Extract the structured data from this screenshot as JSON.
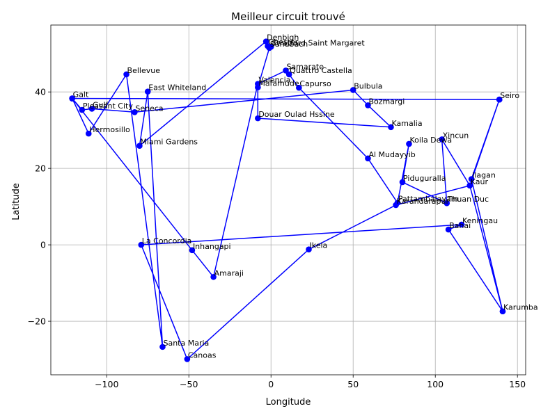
{
  "chart_data": {
    "type": "line",
    "title": "Meilleur circuit trouvé",
    "xlabel": "Longitude",
    "ylabel": "Latitude",
    "xlim": [
      -134,
      155
    ],
    "ylim": [
      -34,
      57.5
    ],
    "xticks": [
      -100,
      -50,
      0,
      50,
      100,
      150
    ],
    "yticks": [
      -20,
      0,
      20,
      40
    ],
    "grid": true,
    "color": "#0000ff",
    "series": [
      {
        "points": [
          {
            "name": "Galt",
            "x": -121,
            "y": 38.3
          },
          {
            "name": "Seiro",
            "x": 139,
            "y": 38
          },
          {
            "name": "Ilagan",
            "x": 122,
            "y": 17.2
          },
          {
            "name": "Karumba",
            "x": 141,
            "y": -17.4
          },
          {
            "name": "Kaur",
            "x": 121,
            "y": 15.5
          },
          {
            "name": "Xincun",
            "x": 104,
            "y": 27.6
          },
          {
            "name": "Thuan Duc",
            "x": 107,
            "y": 10.9
          },
          {
            "name": "Piduguralla",
            "x": 80,
            "y": 16.4
          },
          {
            "name": "Koila Dewa",
            "x": 84,
            "y": 26.4
          },
          {
            "name": "Pattambalayam",
            "x": 77,
            "y": 11
          },
          {
            "name": "Al Mudayyib",
            "x": 59,
            "y": 22.6
          },
          {
            "name": "Capurso",
            "x": 17,
            "y": 41.1
          },
          {
            "name": "Quattro Castella",
            "x": 11,
            "y": 44.6
          },
          {
            "name": "Samarate",
            "x": 9,
            "y": 45.6
          },
          {
            "name": "Valencia",
            "x": -8,
            "y": 42.1
          },
          {
            "name": "Amaraji",
            "x": -35,
            "y": -8.4
          },
          {
            "name": "Inhangapi",
            "x": -48,
            "y": -1.4
          },
          {
            "name": "Galt",
            "x": -121,
            "y": 38.3
          },
          {
            "name": "Hermosillo",
            "x": -111,
            "y": 29.1
          },
          {
            "name": "Bellevue",
            "x": -88,
            "y": 44.6
          },
          {
            "name": "Santa Maria",
            "x": -66,
            "y": -26.7
          },
          {
            "name": "East Whiteland",
            "x": -75,
            "y": 40.1
          },
          {
            "name": "Miami Gardens",
            "x": -80,
            "y": 25.9
          },
          {
            "name": "Denbigh",
            "x": -3,
            "y": 53.2
          },
          {
            "name": "Chester",
            "x": -2,
            "y": 52
          },
          {
            "name": "Stratford Saint Margaret",
            "x": 0,
            "y": 51.8
          },
          {
            "name": "Sandbach",
            "x": -1,
            "y": 51.5
          },
          {
            "name": "Mafamude",
            "x": -8,
            "y": 41.2
          },
          {
            "name": "Douar Oulad Hssine",
            "x": -8,
            "y": 33.1
          },
          {
            "name": "Kamalia",
            "x": 73,
            "y": 30.8
          },
          {
            "name": "Bozmargi",
            "x": 59,
            "y": 36.5
          },
          {
            "name": "Bulbula",
            "x": 50,
            "y": 40.5
          },
          {
            "name": "Seneca",
            "x": -83,
            "y": 34.7
          },
          {
            "name": "Gulf",
            "x": -109,
            "y": 35.6
          },
          {
            "name": "Pleasant City",
            "x": -115,
            "y": 35.3
          },
          {
            "name": "Galt",
            "x": -121,
            "y": 38.3
          },
          {
            "name": "Seiro",
            "x": 139,
            "y": 38
          },
          {
            "name": "Kaur",
            "x": 121,
            "y": 15.5
          },
          {
            "name": "Karandarapur",
            "x": 76,
            "y": 10.4
          },
          {
            "name": "Ikela",
            "x": 23,
            "y": -1.2
          },
          {
            "name": "Canoas",
            "x": -51,
            "y": -29.9
          },
          {
            "name": "La Concordia",
            "x": -79,
            "y": 0
          },
          {
            "name": "Keningau",
            "x": 116,
            "y": 5.3
          },
          {
            "name": "Bahai",
            "x": 108,
            "y": 4
          },
          {
            "name": "Karumba",
            "x": 141,
            "y": -17.4
          }
        ]
      }
    ],
    "labels": [
      {
        "name": "Denbigh",
        "x": -3,
        "y": 53.2
      },
      {
        "name": "Chester",
        "x": -2,
        "y": 52
      },
      {
        "name": "Sandbach",
        "x": -1,
        "y": 51.5
      },
      {
        "name": "Stratford Saint Margaret",
        "x": 0,
        "y": 51.8
      },
      {
        "name": "Samarate",
        "x": 9,
        "y": 45.6
      },
      {
        "name": "Quattro Castella",
        "x": 11,
        "y": 44.6
      },
      {
        "name": "Bellevue",
        "x": -88,
        "y": 44.6
      },
      {
        "name": "Valencia",
        "x": -8,
        "y": 42.1
      },
      {
        "name": "Mafamude",
        "x": -8,
        "y": 41.2
      },
      {
        "name": "Capurso",
        "x": 17,
        "y": 41.1
      },
      {
        "name": "Bulbula",
        "x": 50,
        "y": 40.5
      },
      {
        "name": "East Whiteland",
        "x": -75,
        "y": 40.1
      },
      {
        "name": "Galt",
        "x": -121,
        "y": 38.3
      },
      {
        "name": "Seiro",
        "x": 139,
        "y": 38
      },
      {
        "name": "Bozmargi",
        "x": 59,
        "y": 36.5
      },
      {
        "name": "Gulf",
        "x": -109,
        "y": 35.6
      },
      {
        "name": "Pleasant City",
        "x": -115,
        "y": 35.3
      },
      {
        "name": "Seneca",
        "x": -83,
        "y": 34.7
      },
      {
        "name": "Douar Oulad Hssine",
        "x": -8,
        "y": 33.1
      },
      {
        "name": "Kamalia",
        "x": 73,
        "y": 30.8
      },
      {
        "name": "Hermosillo",
        "x": -111,
        "y": 29.1
      },
      {
        "name": "Xincun",
        "x": 104,
        "y": 27.6
      },
      {
        "name": "Koila Dewa",
        "x": 84,
        "y": 26.4
      },
      {
        "name": "Miami Gardens",
        "x": -80,
        "y": 25.9
      },
      {
        "name": "Al Mudayyib",
        "x": 59,
        "y": 22.6
      },
      {
        "name": "Ilagan",
        "x": 122,
        "y": 17.2
      },
      {
        "name": "Piduguralla",
        "x": 80,
        "y": 16.4
      },
      {
        "name": "Kaur",
        "x": 121,
        "y": 15.5
      },
      {
        "name": "Pattambalayam",
        "x": 77,
        "y": 11
      },
      {
        "name": "Thuan Duc",
        "x": 107,
        "y": 10.9
      },
      {
        "name": "Karandarapur",
        "x": 76,
        "y": 10.4
      },
      {
        "name": "Keningau",
        "x": 116,
        "y": 5.3
      },
      {
        "name": "Bahai",
        "x": 108,
        "y": 4
      },
      {
        "name": "La Concordia",
        "x": -79,
        "y": 0
      },
      {
        "name": "Inhangapi",
        "x": -48,
        "y": -1.4
      },
      {
        "name": "Ikela",
        "x": 23,
        "y": -1.2
      },
      {
        "name": "Amaraji",
        "x": -35,
        "y": -8.4
      },
      {
        "name": "Karumba",
        "x": 141,
        "y": -17.4
      },
      {
        "name": "Santa Maria",
        "x": -66,
        "y": -26.7
      },
      {
        "name": "Canoas",
        "x": -51,
        "y": -29.9
      }
    ]
  }
}
